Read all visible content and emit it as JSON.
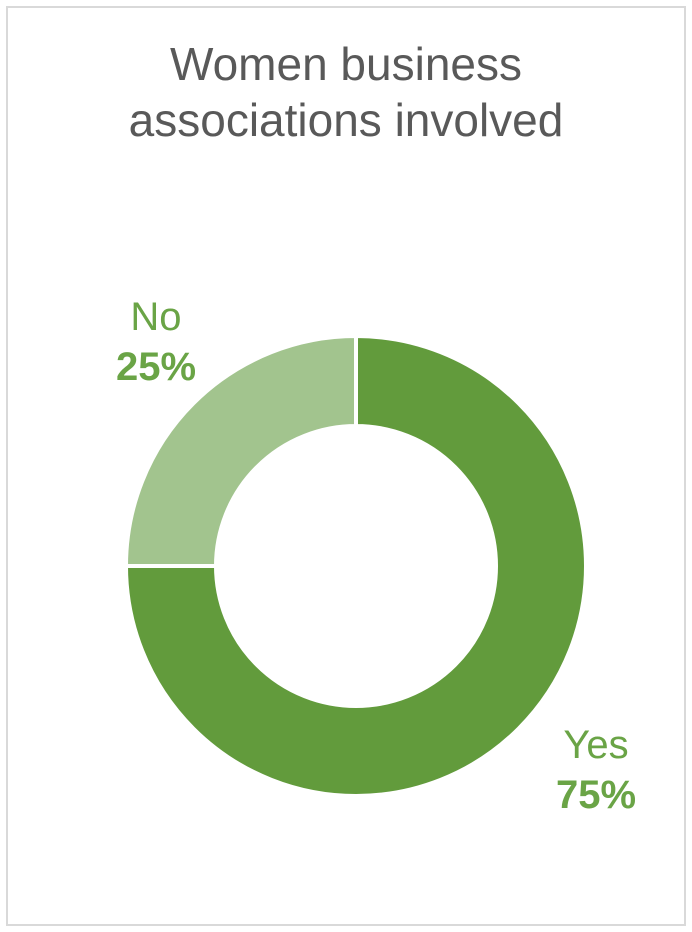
{
  "chart_data": {
    "type": "pie",
    "subtype": "donut",
    "title_lines": [
      "Women business",
      "associations involved"
    ],
    "slices": [
      {
        "label": "Yes",
        "value": 75,
        "value_label": "75%",
        "color": "#629b3c"
      },
      {
        "label": "No",
        "value": 25,
        "value_label": "25%",
        "color": "#a2c48e"
      }
    ],
    "label_color": "#6aa446",
    "legend": "none"
  }
}
